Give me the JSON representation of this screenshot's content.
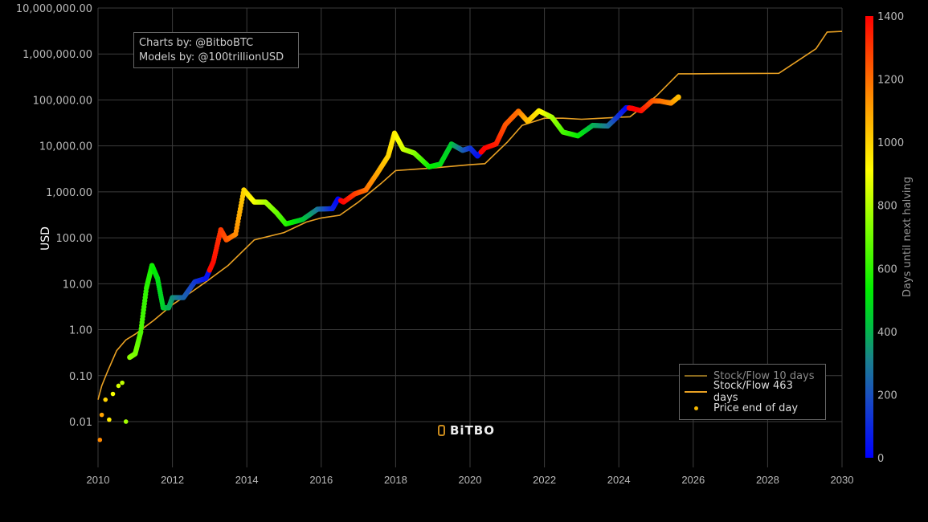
{
  "credits": {
    "line1": "Charts by: @BitboBTC",
    "line2": "Models by: @100trillionUSD"
  },
  "logo": {
    "text": "BiTBO",
    "icon": "bitbo-b-icon"
  },
  "legend": {
    "items": [
      {
        "label": "Stock/Flow 10 days",
        "color": "#8a6a1e",
        "type": "line"
      },
      {
        "label": "Stock/Flow 463 days",
        "color": "#e8a023",
        "type": "line"
      },
      {
        "label": "Price end of day",
        "color": "#f5b800",
        "type": "marker"
      }
    ]
  },
  "colors": {
    "background": "#000000",
    "grid": "#3c3c3c",
    "s2f_line": "#e8a023",
    "tick_text": "#bbbbbb"
  },
  "chart_data": {
    "type": "scatter",
    "title": "",
    "xlabel": "",
    "ylabel": "USD",
    "yscale": "log",
    "xlim": [
      2010,
      2030
    ],
    "ylim": [
      0.001,
      10000000
    ],
    "grid": true,
    "legend_position": "bottom-right",
    "x_ticks": [
      "2010",
      "2012",
      "2014",
      "2016",
      "2018",
      "2020",
      "2022",
      "2024",
      "2026",
      "2028",
      "2030"
    ],
    "y_ticks": [
      "10,000,000.00",
      "1,000,000.00",
      "100,000.00",
      "10,000.00",
      "1,000.00",
      "100.00",
      "10.00",
      "1.00",
      "0.10",
      "0.01"
    ],
    "colorbar": {
      "title": "Days until next halving",
      "range": [
        0,
        1400
      ],
      "ticks": [
        "0",
        "200",
        "400",
        "600",
        "800",
        "1000",
        "1200",
        "1400"
      ],
      "colorscale": [
        "#0000ff",
        "#1a66a0",
        "#00dd20",
        "#80ff00",
        "#ffff00",
        "#ff8c00",
        "#ff0000"
      ]
    },
    "series": [
      {
        "name": "Stock/Flow 463 days",
        "type": "line",
        "x": [
          2010.0,
          2010.1,
          2010.25,
          2010.5,
          2010.75,
          2011.0,
          2011.5,
          2012.0,
          2012.5,
          2012.9,
          2013.5,
          2014.2,
          2015.0,
          2015.6,
          2016.0,
          2016.5,
          2017.0,
          2017.6,
          2018.0,
          2019.0,
          2020.0,
          2020.4,
          2021.0,
          2021.4,
          2022.0,
          2022.5,
          2023.0,
          2024.0,
          2024.3,
          2025.0,
          2025.6,
          2026.0,
          2027.0,
          2028.3,
          2028.8,
          2029.3,
          2029.6,
          2030.0
        ],
        "y": [
          0.03,
          0.06,
          0.12,
          0.35,
          0.6,
          0.8,
          1.6,
          3.5,
          6.5,
          11,
          25,
          90,
          130,
          220,
          270,
          310,
          600,
          1500,
          2900,
          3300,
          3900,
          4100,
          12000,
          28000,
          40000,
          40000,
          38000,
          42000,
          43000,
          120000,
          370000,
          370000,
          375000,
          380000,
          700000,
          1300000,
          3000000,
          3100000
        ]
      },
      {
        "name": "Price end of day",
        "type": "scatter",
        "x": [
          2010.05,
          2010.1,
          2010.2,
          2010.3,
          2010.4,
          2010.55,
          2010.65,
          2010.75,
          2010.85,
          2011.0,
          2011.15,
          2011.3,
          2011.45,
          2011.6,
          2011.75,
          2011.9,
          2012.0,
          2012.3,
          2012.6,
          2012.9,
          2013.1,
          2013.3,
          2013.45,
          2013.7,
          2013.92,
          2014.2,
          2014.5,
          2014.8,
          2015.05,
          2015.5,
          2015.9,
          2016.3,
          2016.45,
          2016.6,
          2016.9,
          2017.2,
          2017.5,
          2017.8,
          2017.97,
          2018.2,
          2018.5,
          2018.9,
          2019.2,
          2019.5,
          2019.8,
          2020.0,
          2020.2,
          2020.4,
          2020.7,
          2020.95,
          2021.3,
          2021.55,
          2021.85,
          2022.2,
          2022.5,
          2022.9,
          2023.3,
          2023.7,
          2023.95,
          2024.2,
          2024.35,
          2024.6,
          2024.9,
          2025.1,
          2025.4,
          2025.6
        ],
        "y": [
          0.004,
          0.014,
          0.03,
          0.011,
          0.04,
          0.06,
          0.07,
          0.01,
          0.25,
          0.3,
          0.9,
          8,
          25,
          13,
          3,
          3,
          5,
          5,
          11,
          13,
          30,
          150,
          90,
          120,
          1100,
          600,
          600,
          350,
          200,
          250,
          420,
          430,
          700,
          600,
          900,
          1100,
          2500,
          6000,
          19000,
          8500,
          7000,
          3500,
          4000,
          11000,
          8000,
          9000,
          6000,
          9000,
          11000,
          29000,
          57000,
          34000,
          58000,
          42000,
          20000,
          16500,
          28000,
          27000,
          42000,
          68000,
          66000,
          58000,
          96000,
          95000,
          85000,
          115000
        ],
        "c": [
          1150,
          1100,
          1000,
          950,
          900,
          850,
          820,
          780,
          750,
          720,
          650,
          600,
          560,
          500,
          460,
          400,
          350,
          250,
          150,
          50,
          1380,
          1300,
          1250,
          1150,
          1000,
          900,
          800,
          700,
          600,
          450,
          300,
          100,
          10,
          1400,
          1300,
          1200,
          1100,
          1000,
          950,
          850,
          750,
          550,
          500,
          450,
          250,
          150,
          50,
          1400,
          1350,
          1250,
          1200,
          1050,
          950,
          800,
          650,
          550,
          400,
          300,
          150,
          30,
          1420,
          1380,
          1250,
          1200,
          1150,
          1050
        ]
      }
    ]
  }
}
